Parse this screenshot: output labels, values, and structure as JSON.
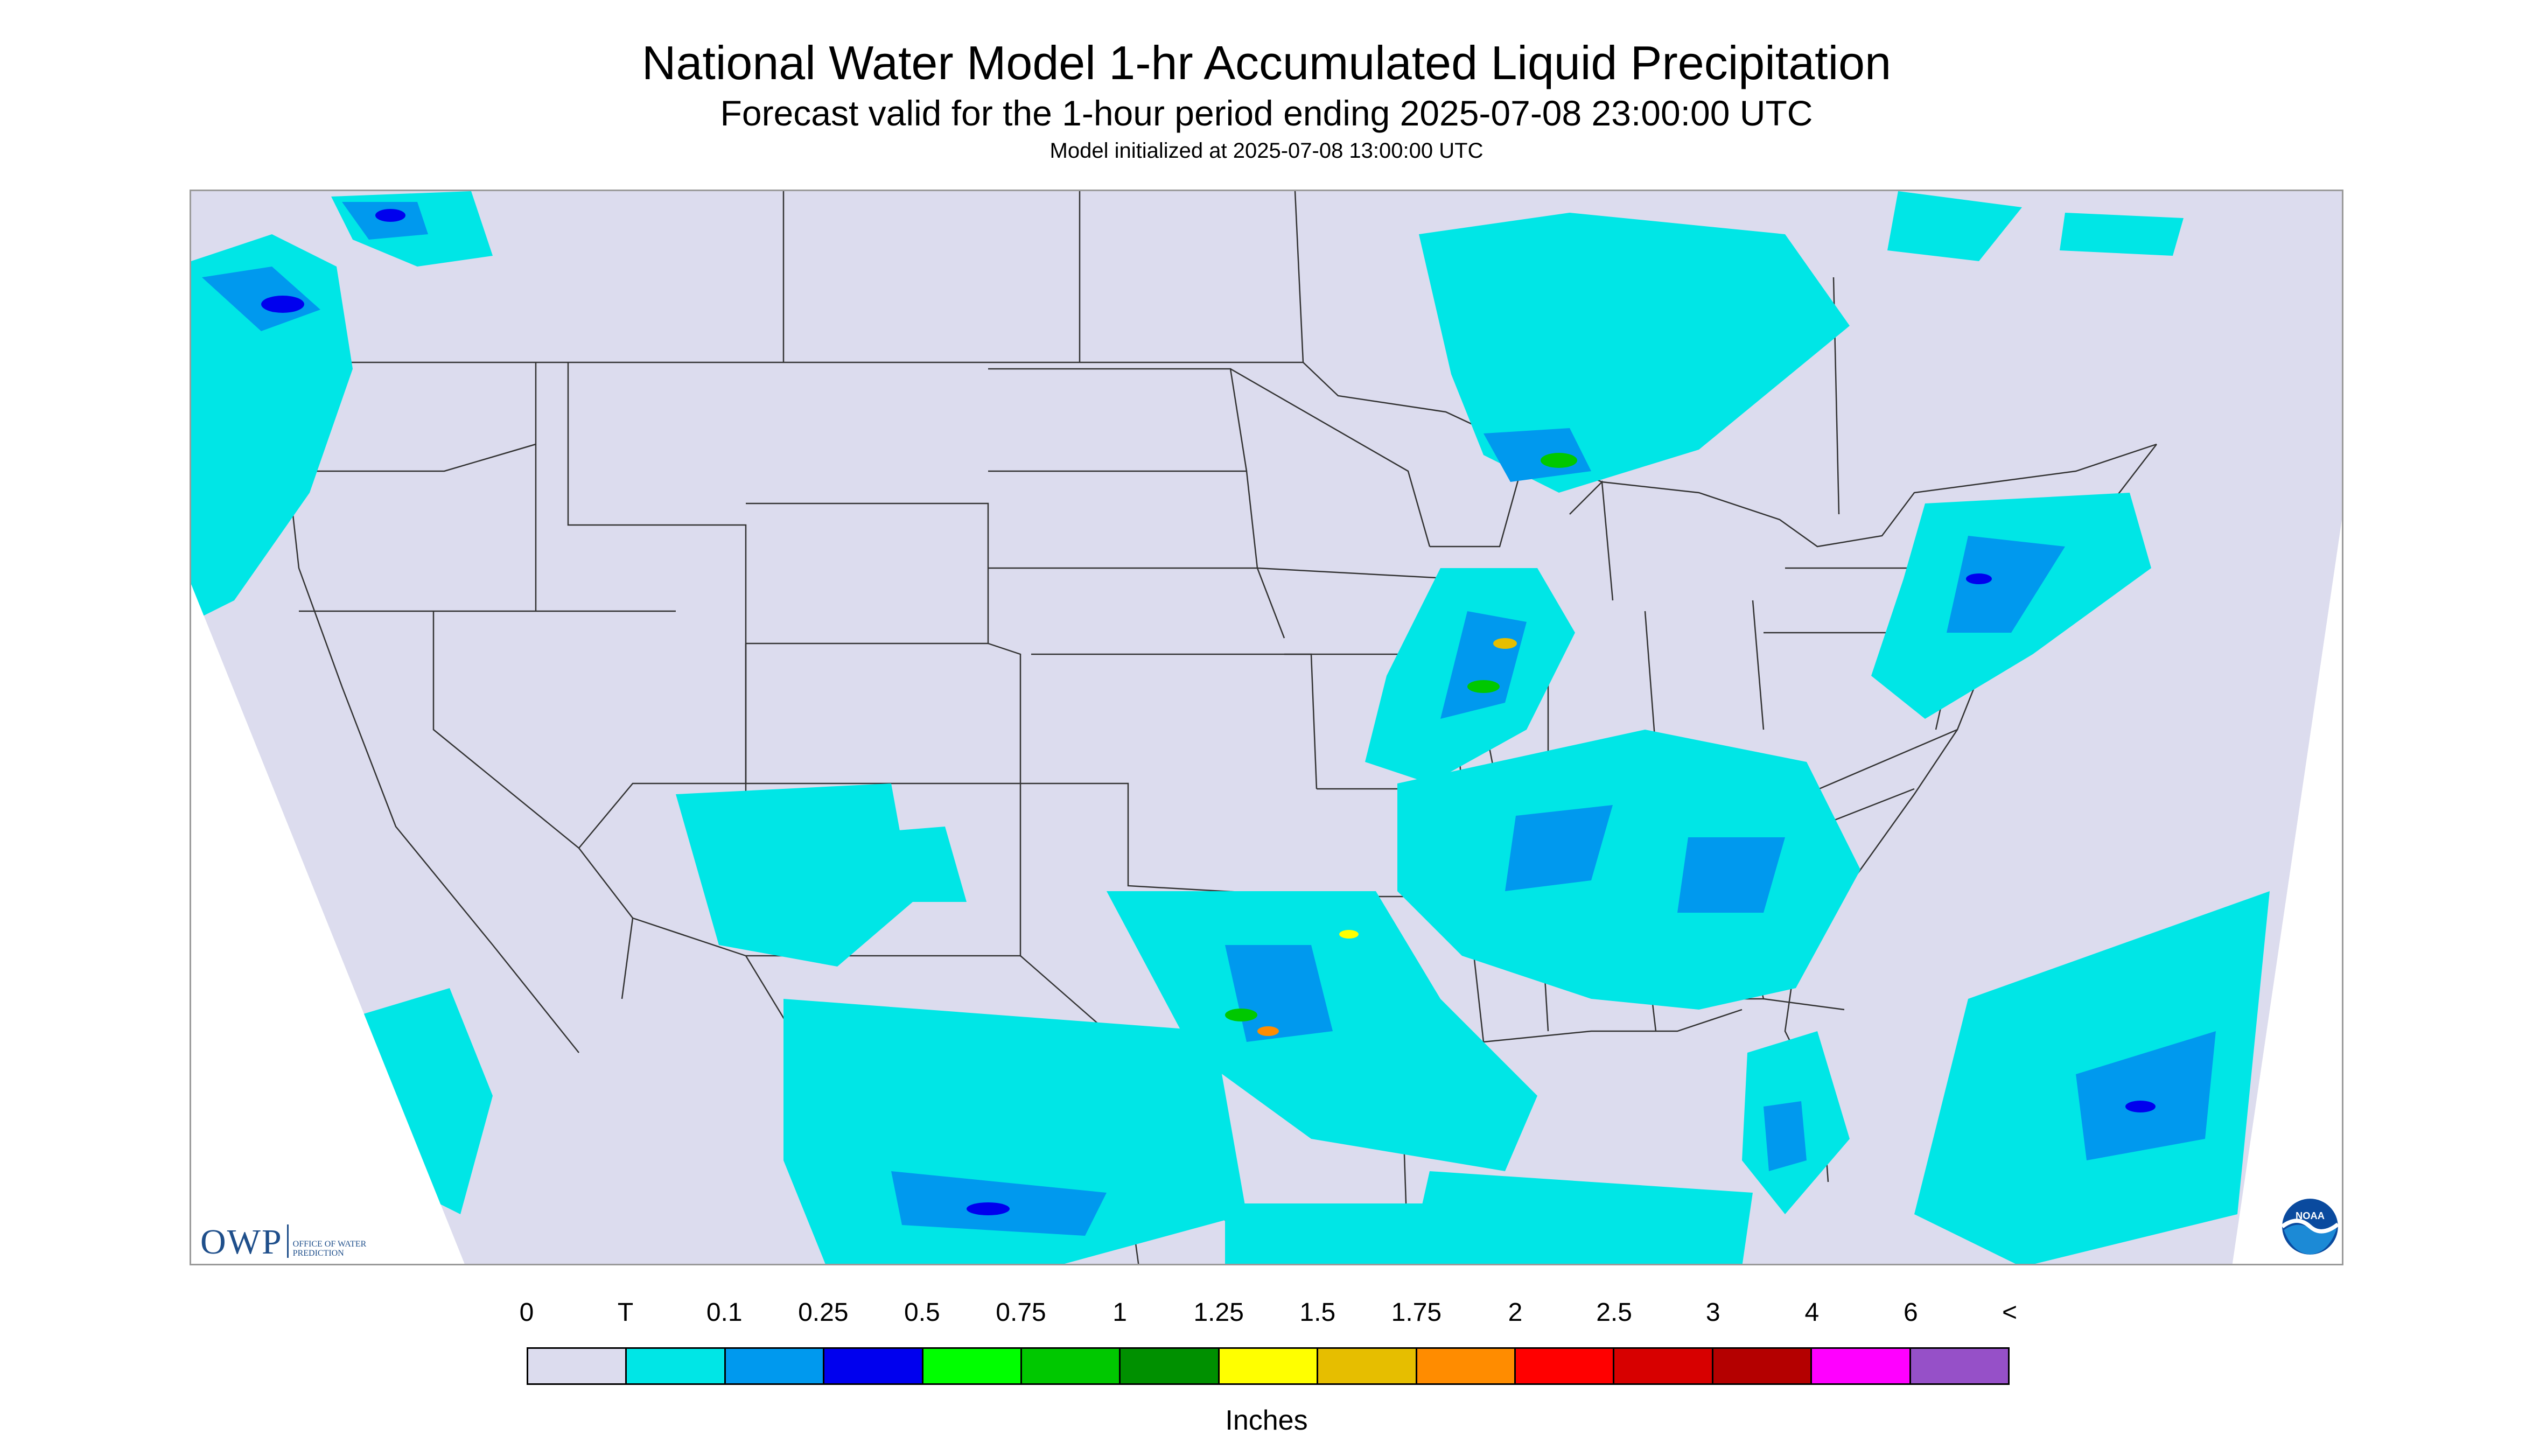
{
  "header": {
    "title": "National Water Model 1-hr Accumulated Liquid Precipitation",
    "subtitle": "Forecast valid for the 1-hour period ending 2025-07-08 23:00:00 UTC",
    "init": "Model initialized at 2025-07-08 13:00:00 UTC"
  },
  "logos": {
    "owp_mark": "OWP",
    "owp_name": "Office of Water Prediction",
    "noaa_mark": "NOAA",
    "noaa_icon": "noaa-logo-icon"
  },
  "map": {
    "background_color": "#dcdcee",
    "projection": "Lambert Conformal Conic",
    "region": "Contiguous United States"
  },
  "legend": {
    "units": "Inches",
    "labels": [
      "0",
      "T",
      "0.1",
      "0.25",
      "0.5",
      "0.75",
      "1",
      "1.25",
      "1.5",
      "1.75",
      "2",
      "2.5",
      "3",
      "4",
      "6",
      "<"
    ],
    "colors": [
      "#dcdcee",
      "#00e6e6",
      "#0099ee",
      "#0000ee",
      "#00ff00",
      "#00c800",
      "#009000",
      "#ffff00",
      "#e6be00",
      "#ff8c00",
      "#ff0000",
      "#d70000",
      "#b40000",
      "#ff00ff",
      "#9650c8"
    ]
  },
  "precip_areas": [
    {
      "region": "Pacific Northwest / British Columbia",
      "level": "T",
      "max_level": "0.5"
    },
    {
      "region": "Upper Great Lakes / Ontario",
      "level": "T",
      "max_level": "0.75"
    },
    {
      "region": "Midwest (Illinois / Indiana)",
      "level": "T",
      "max_level": "1.5"
    },
    {
      "region": "Northeast (New York / New England)",
      "level": "T",
      "max_level": "0.5"
    },
    {
      "region": "Mid-Atlantic",
      "level": "T",
      "max_level": "0.5"
    },
    {
      "region": "Ohio / Tennessee Valley",
      "level": "T",
      "max_level": "0.5"
    },
    {
      "region": "Southeast (Georgia / Carolinas)",
      "level": "T",
      "max_level": "0.25"
    },
    {
      "region": "Texas / Gulf Coast",
      "level": "T",
      "max_level": "1.75"
    },
    {
      "region": "Southwest (Arizona / New Mexico)",
      "level": "T",
      "max_level": "0.1"
    },
    {
      "region": "Florida",
      "level": "T",
      "max_level": "0.5"
    },
    {
      "region": "Northern Mexico",
      "level": "T",
      "max_level": "0.5"
    },
    {
      "region": "Western Atlantic",
      "level": "T",
      "max_level": "0.5"
    }
  ]
}
